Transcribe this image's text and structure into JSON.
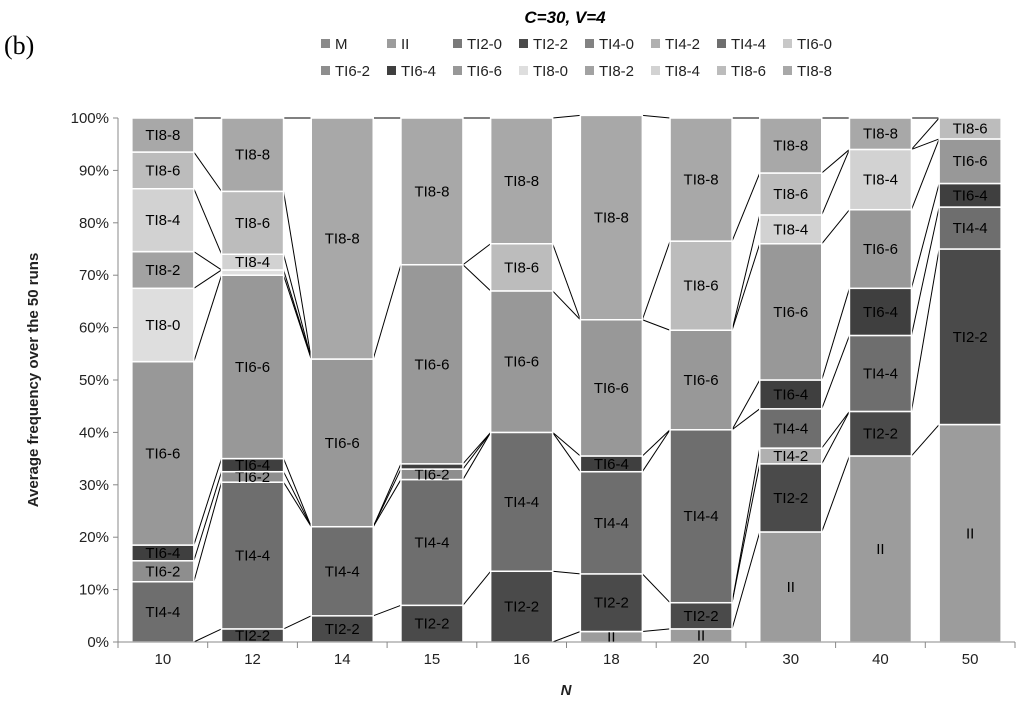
{
  "panel_label": "(b)",
  "chart_data": {
    "type": "bar",
    "stacked": true,
    "title": "C=30, V=4",
    "xlabel": "N",
    "ylabel": "Average frequency over the 50 runs",
    "ylim": [
      0,
      100
    ],
    "y_ticks": [
      "0%",
      "10%",
      "20%",
      "30%",
      "40%",
      "50%",
      "60%",
      "70%",
      "80%",
      "90%",
      "100%"
    ],
    "grid": false,
    "legend_position": "top",
    "categories": [
      "10",
      "12",
      "14",
      "15",
      "16",
      "18",
      "20",
      "30",
      "40",
      "50"
    ],
    "series": [
      {
        "name": "M",
        "color": "#8a8a8a",
        "label_color": "#000000",
        "values": [
          0,
          0,
          0,
          0,
          0,
          0,
          0,
          0,
          0,
          0
        ]
      },
      {
        "name": "II",
        "color": "#9c9c9c",
        "label_color": "#000000",
        "values": [
          0,
          0,
          0,
          0,
          0,
          2,
          2.5,
          21,
          35.5,
          41.5
        ]
      },
      {
        "name": "TI2-0",
        "color": "#7a7a7a",
        "label_color": "#ffffff",
        "values": [
          0,
          0,
          0,
          0,
          0,
          0,
          0,
          0,
          0,
          0
        ]
      },
      {
        "name": "TI2-2",
        "color": "#4a4a4a",
        "label_color": "#ffffff",
        "values": [
          0,
          2.5,
          5,
          7,
          13.5,
          11,
          5,
          13,
          8.5,
          33.5
        ]
      },
      {
        "name": "TI4-0",
        "color": "#828282",
        "label_color": "#ffffff",
        "values": [
          0,
          0,
          0,
          0,
          0,
          0,
          0,
          0,
          0,
          0
        ]
      },
      {
        "name": "TI4-2",
        "color": "#b0b0b0",
        "label_color": "#000000",
        "values": [
          0,
          0,
          0,
          0,
          0,
          0,
          0,
          3,
          0,
          0
        ]
      },
      {
        "name": "TI4-4",
        "color": "#6e6e6e",
        "label_color": "#ffffff",
        "values": [
          11.5,
          28,
          17,
          24,
          26.5,
          19.5,
          33,
          7.5,
          14.5,
          8
        ]
      },
      {
        "name": "TI6-0",
        "color": "#c8c8c8",
        "label_color": "#000000",
        "values": [
          0,
          0,
          0,
          0,
          0,
          0,
          0,
          0,
          0,
          0
        ]
      },
      {
        "name": "TI6-2",
        "color": "#8e8e8e",
        "label_color": "#000000",
        "values": [
          4,
          2,
          0,
          2,
          0,
          0,
          0,
          0,
          0,
          0
        ]
      },
      {
        "name": "TI6-4",
        "color": "#3f3f3f",
        "label_color": "#ffffff",
        "values": [
          3,
          2.5,
          0,
          1,
          0,
          3,
          0,
          5.5,
          9,
          4.5
        ]
      },
      {
        "name": "TI6-6",
        "color": "#989898",
        "label_color": "#000000",
        "values": [
          35,
          35,
          32,
          38,
          27,
          26,
          19,
          26,
          15,
          8.5
        ]
      },
      {
        "name": "TI8-0",
        "color": "#dedede",
        "label_color": "#000000",
        "values": [
          14,
          1,
          0,
          0,
          0,
          0,
          0,
          0,
          0,
          0
        ]
      },
      {
        "name": "TI8-2",
        "color": "#a2a2a2",
        "label_color": "#000000",
        "values": [
          7,
          0,
          0,
          0,
          0,
          0,
          0,
          0,
          0,
          0
        ]
      },
      {
        "name": "TI8-4",
        "color": "#d2d2d2",
        "label_color": "#000000",
        "values": [
          12,
          3,
          0,
          0,
          0,
          0,
          0,
          5.5,
          11.5,
          0
        ]
      },
      {
        "name": "TI8-6",
        "color": "#bcbcbc",
        "label_color": "#000000",
        "values": [
          7,
          12,
          0,
          0,
          9,
          0,
          17,
          8,
          0,
          4
        ]
      },
      {
        "name": "TI8-8",
        "color": "#a8a8a8",
        "label_color": "#000000",
        "values": [
          6.5,
          14,
          46,
          28,
          24,
          39,
          23.5,
          10.5,
          6,
          0
        ]
      }
    ],
    "legend_rows": [
      [
        "M",
        "II",
        "TI2-0",
        "TI2-2",
        "TI4-0",
        "TI4-2",
        "TI4-4",
        "TI6-0"
      ],
      [
        "TI6-2",
        "TI6-4",
        "TI6-6",
        "TI8-0",
        "TI8-2",
        "TI8-4",
        "TI8-6",
        "TI8-8"
      ]
    ]
  }
}
